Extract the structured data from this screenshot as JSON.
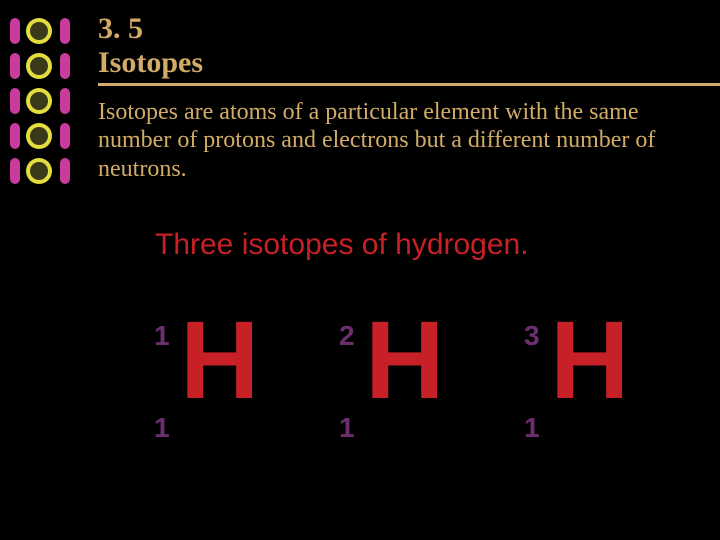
{
  "colors": {
    "background": "#000000",
    "title_text": "#d2ab66",
    "title_underline": "#d2ab66",
    "para_text": "#d2ab66",
    "subhead_text": "#c72127",
    "number_text": "#6b2e6e",
    "symbol_text": "#c72127",
    "bullet_bar": "#c93b9d",
    "bullet_orb_outer": "#e4dd3e",
    "bullet_orb_inner": "#3a3a1a"
  },
  "title": "3. 5  Isotopes",
  "paragraph": "Isotopes are atoms of a particular element with the same number of protons and electrons but a different number of neutrons.",
  "subheading": "Three isotopes of hydrogen.",
  "isotopes": [
    {
      "mass": "1",
      "atomic": "1",
      "symbol": "H"
    },
    {
      "mass": "2",
      "atomic": "1",
      "symbol": "H"
    },
    {
      "mass": "3",
      "atomic": "1",
      "symbol": "H"
    }
  ],
  "bullet_count": 5
}
